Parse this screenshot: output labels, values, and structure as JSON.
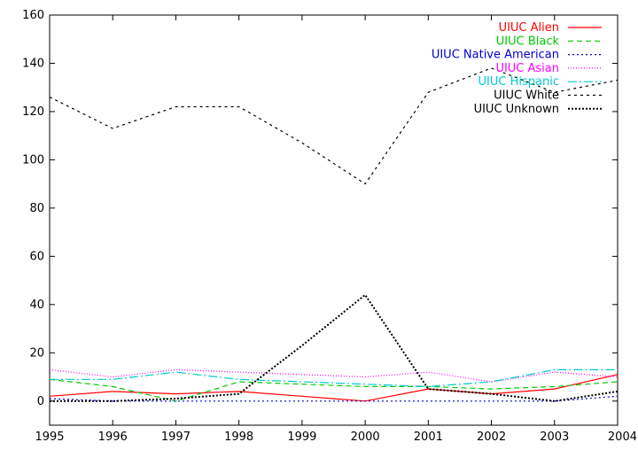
{
  "chart_data": {
    "type": "line",
    "title": "",
    "xlabel": "",
    "ylabel": "",
    "x": [
      1995,
      1996,
      1997,
      1998,
      1999,
      2000,
      2001,
      2002,
      2003,
      2004
    ],
    "x_ticks": [
      "1995",
      "1996",
      "1997",
      "1998",
      "1999",
      "2000",
      "2001",
      "2002",
      "2003",
      "2004"
    ],
    "xlim": [
      1995,
      2004
    ],
    "ylim": [
      -10,
      160
    ],
    "y_ticks": [
      0,
      20,
      40,
      60,
      80,
      100,
      120,
      140,
      160
    ],
    "y_tick_labels": [
      "0",
      "20",
      "40",
      "60",
      "80",
      "100",
      "120",
      "140",
      "160"
    ],
    "grid": false,
    "legend_position": "top-right",
    "series": [
      {
        "name": "UIUC Alien",
        "color": "#ff0000",
        "dash": "",
        "values": [
          2,
          4,
          3,
          4,
          2,
          0,
          5,
          3,
          5,
          11
        ]
      },
      {
        "name": "UIUC Black",
        "color": "#00cc00",
        "dash": "6,4",
        "values": [
          9,
          6,
          0,
          8,
          7,
          6,
          6,
          5,
          6,
          8
        ]
      },
      {
        "name": "UIUC Native American",
        "color": "#0000cc",
        "dash": "2,3",
        "values": [
          1,
          0,
          0,
          0,
          0,
          0,
          0,
          0,
          0,
          2
        ]
      },
      {
        "name": "UIUC Asian",
        "color": "#ff00ff",
        "dash": "1,2",
        "values": [
          13,
          10,
          13,
          12,
          11,
          10,
          12,
          8,
          12,
          10
        ]
      },
      {
        "name": "UIUC Hispanic",
        "color": "#00cccc",
        "dash": "10,3,2,3",
        "values": [
          9,
          9,
          12,
          9,
          8,
          7,
          6,
          8,
          13,
          13
        ]
      },
      {
        "name": "UIUC White",
        "color": "#000000",
        "dash": "3,4",
        "values": [
          126,
          113,
          122,
          122,
          107,
          90,
          128,
          138,
          128,
          133
        ]
      },
      {
        "name": "UIUC Unknown",
        "color": "#000000",
        "dash": "2,2",
        "values": [
          0,
          0,
          1,
          3,
          23,
          44,
          5,
          3,
          0,
          4
        ]
      }
    ]
  }
}
